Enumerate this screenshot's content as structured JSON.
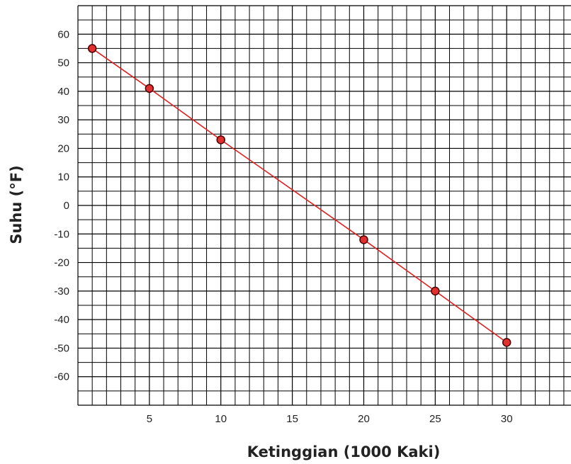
{
  "chart_data": {
    "type": "line",
    "title": "",
    "xlabel": "Ketinggian (1000 Kaki)",
    "ylabel": "Suhu (°F)",
    "xlim": [
      0,
      34.5
    ],
    "ylim": [
      -70,
      70
    ],
    "x_ticks": [
      5,
      10,
      15,
      20,
      25,
      30
    ],
    "y_ticks": [
      60,
      50,
      40,
      30,
      20,
      10,
      0,
      -10,
      -20,
      -30,
      -40,
      -50,
      -60
    ],
    "grid": true,
    "series": [
      {
        "x": [
          1,
          5,
          10,
          20,
          25,
          30
        ],
        "y": [
          55,
          41,
          23,
          -12,
          -30,
          -48
        ],
        "color": "#e02020"
      }
    ],
    "colors": {
      "line": "#e02020",
      "marker_fill": "#e03030",
      "marker_stroke": "#4a0000",
      "grid": "#000000"
    }
  }
}
